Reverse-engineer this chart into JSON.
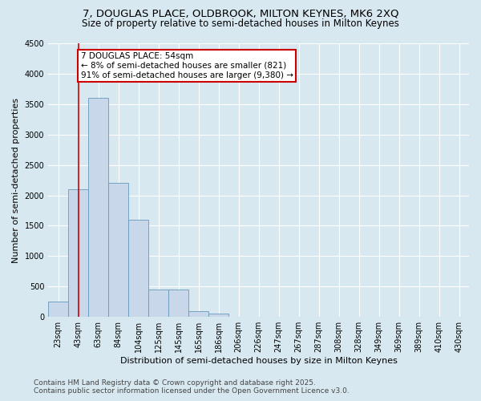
{
  "title1": "7, DOUGLAS PLACE, OLDBROOK, MILTON KEYNES, MK6 2XQ",
  "title2": "Size of property relative to semi-detached houses in Milton Keynes",
  "xlabel": "Distribution of semi-detached houses by size in Milton Keynes",
  "ylabel": "Number of semi-detached properties",
  "categories": [
    "23sqm",
    "43sqm",
    "63sqm",
    "84sqm",
    "104sqm",
    "125sqm",
    "145sqm",
    "165sqm",
    "186sqm",
    "206sqm",
    "226sqm",
    "247sqm",
    "267sqm",
    "287sqm",
    "308sqm",
    "328sqm",
    "349sqm",
    "369sqm",
    "389sqm",
    "410sqm",
    "430sqm"
  ],
  "values": [
    250,
    2100,
    3600,
    2200,
    1600,
    450,
    450,
    100,
    60,
    0,
    0,
    0,
    0,
    0,
    0,
    0,
    0,
    0,
    0,
    0,
    0
  ],
  "bar_color": "#c8d8ea",
  "bar_edge_color": "#6699bb",
  "vline_x_pos": 1.0,
  "vline_color": "#cc0000",
  "annotation_title": "7 DOUGLAS PLACE: 54sqm",
  "annotation_line1": "← 8% of semi-detached houses are smaller (821)",
  "annotation_line2": "91% of semi-detached houses are larger (9,380) →",
  "annotation_box_edge_color": "#cc0000",
  "ylim": [
    0,
    4500
  ],
  "yticks": [
    0,
    500,
    1000,
    1500,
    2000,
    2500,
    3000,
    3500,
    4000,
    4500
  ],
  "footer1": "Contains HM Land Registry data © Crown copyright and database right 2025.",
  "footer2": "Contains public sector information licensed under the Open Government Licence v3.0.",
  "bg_color": "#d8e8f0",
  "plot_bg_color": "#d8e8f0",
  "title_fontsize": 9.5,
  "subtitle_fontsize": 8.5,
  "tick_fontsize": 7,
  "label_fontsize": 8,
  "footer_fontsize": 6.5,
  "annotation_fontsize": 7.5
}
